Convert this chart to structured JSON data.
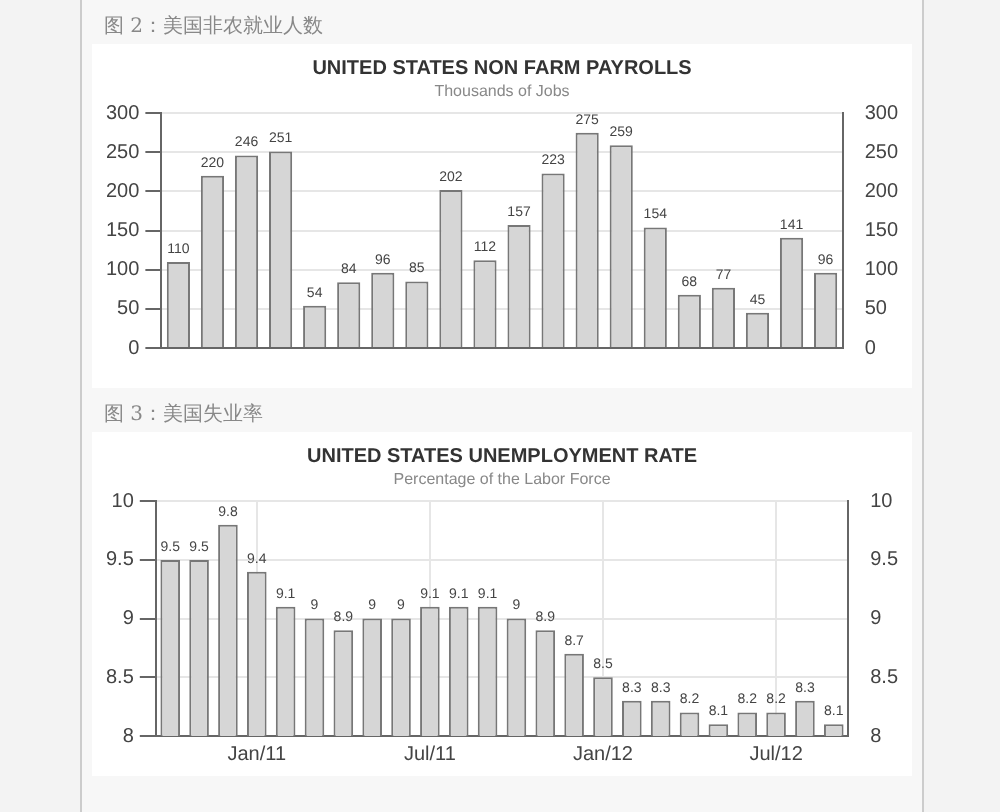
{
  "chart_data": [
    {
      "type": "bar",
      "title": "UNITED STATES NON FARM PAYROLLS",
      "subtitle": "Thousands of Jobs",
      "annotations": [
        "图 2：美国非农就业人数"
      ],
      "categories": [
        null,
        null,
        null,
        null,
        null,
        null,
        null,
        null,
        null,
        null,
        null,
        null,
        null,
        null,
        null,
        null,
        null,
        null,
        null,
        null
      ],
      "values": [
        110,
        220,
        246,
        251,
        54,
        84,
        96,
        85,
        202,
        112,
        157,
        223,
        275,
        259,
        154,
        68,
        77,
        45,
        141,
        96
      ],
      "color": "#d6d6d6",
      "ylim": [
        0,
        300
      ],
      "yticks": [
        0,
        50,
        100,
        150,
        200,
        250,
        300
      ],
      "y2lim": [
        0,
        300
      ],
      "y2ticks": [
        0,
        50,
        100,
        150,
        200,
        250,
        300
      ],
      "data_labels": true,
      "grid": "y",
      "legend": false
    },
    {
      "type": "bar",
      "title": "UNITED STATES UNEMPLOYMENT RATE",
      "subtitle": "Percentage of the Labor Force",
      "annotations": [
        "图 3：美国失业率"
      ],
      "categories": [
        null,
        null,
        null,
        "Jan/11",
        null,
        null,
        null,
        null,
        null,
        "Jul/11",
        null,
        null,
        null,
        null,
        null,
        "Jan/12",
        null,
        null,
        null,
        null,
        null,
        "Jul/12",
        null,
        null
      ],
      "values": [
        9.5,
        9.5,
        9.8,
        9.4,
        9.1,
        9,
        8.9,
        9,
        9,
        9.1,
        9.1,
        9.1,
        9,
        8.9,
        8.7,
        8.5,
        8.3,
        8.3,
        8.2,
        8.1,
        8.2,
        8.2,
        8.3,
        8.1
      ],
      "color": "#d6d6d6",
      "ylim": [
        8,
        10
      ],
      "yticks": [
        8,
        8.5,
        9,
        9.5,
        10
      ],
      "y2lim": [
        8,
        10
      ],
      "y2ticks": [
        8,
        8.5,
        9,
        9.5,
        10
      ],
      "data_labels": true,
      "grid": true,
      "legend": false
    }
  ]
}
